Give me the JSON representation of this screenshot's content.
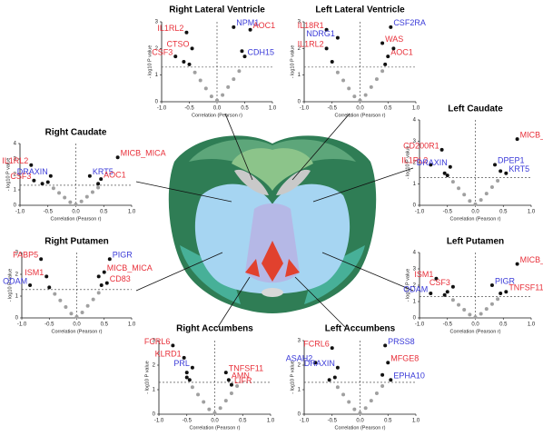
{
  "chart_data": [
    {
      "type": "scatter",
      "title": "Right Lateral Ventricle",
      "x_label": "Correlation (Pearson r)",
      "y_label": "- log10 P value",
      "xlim": [
        -1,
        1
      ],
      "ylim": [
        0,
        3
      ],
      "xticks": [
        {
          "value": -1,
          "label": "-1.0"
        },
        {
          "value": -0.5,
          "label": "-0.5"
        },
        {
          "value": 0,
          "label": "0.0"
        },
        {
          "value": 0.5,
          "label": "0.5"
        },
        {
          "value": 1,
          "label": "1.0"
        }
      ],
      "yticks": [
        0,
        1,
        2,
        3
      ],
      "threshold_x": 0,
      "threshold_y": 1.3,
      "series": [
        {
          "color": "#a0a0a0",
          "x": [
            -0.4,
            -0.3,
            -0.2,
            -0.1,
            0,
            0.1,
            0.2,
            0.3,
            0.4
          ],
          "values": [
            1.1,
            0.8,
            0.5,
            0.2,
            0.05,
            0.25,
            0.55,
            0.85,
            1.15
          ]
        },
        {
          "color": "#111111",
          "x": [
            -0.55,
            -0.75,
            -0.45,
            0.3,
            0.6,
            0.5,
            -0.6,
            -0.5,
            0.45
          ],
          "values": [
            2.6,
            1.7,
            2.0,
            2.8,
            2.7,
            1.7,
            1.5,
            1.4,
            1.9
          ],
          "labels": [
            "IL1RL2",
            "CSF3",
            "CTSO",
            "NPM1",
            "AOC1",
            "CDH15",
            null,
            null,
            null
          ],
          "label_colors": [
            "#e8303a",
            "#e8303a",
            "#e8303a",
            "#3a3ad8",
            "#e8303a",
            "#3a3ad8",
            null,
            null,
            null
          ]
        }
      ]
    },
    {
      "type": "scatter",
      "title": "Left Lateral Ventricle",
      "x_label": "Correlation (Pearson r)",
      "y_label": "- log10 P value",
      "xlim": [
        -1,
        1
      ],
      "ylim": [
        0,
        3
      ],
      "xticks": [
        {
          "value": -1,
          "label": "-1.0"
        },
        {
          "value": -0.5,
          "label": "-0.5"
        },
        {
          "value": 0,
          "label": "0.0"
        },
        {
          "value": 0.5,
          "label": "0.5"
        },
        {
          "value": 1,
          "label": "1.0"
        }
      ],
      "yticks": [
        0,
        1,
        2,
        3
      ],
      "threshold_x": 0,
      "threshold_y": 1.3,
      "series": [
        {
          "color": "#a0a0a0",
          "x": [
            -0.4,
            -0.3,
            -0.2,
            -0.1,
            0,
            0.1,
            0.2,
            0.3,
            0.4
          ],
          "values": [
            1.1,
            0.8,
            0.5,
            0.2,
            0.05,
            0.25,
            0.55,
            0.85,
            1.15
          ]
        },
        {
          "color": "#111111",
          "x": [
            -0.6,
            -0.4,
            -0.6,
            0.55,
            0.4,
            0.5,
            -0.5,
            0.45,
            0.6
          ],
          "values": [
            2.7,
            2.4,
            2.0,
            2.8,
            2.2,
            1.7,
            1.5,
            1.4,
            2.0
          ],
          "labels": [
            "IL18R1",
            "NDRG1",
            "IL1RL2",
            "CSF2RA",
            "WAS",
            "AOC1",
            null,
            null,
            null
          ],
          "label_colors": [
            "#e8303a",
            "#3a3ad8",
            "#e8303a",
            "#3a3ad8",
            "#e8303a",
            "#e8303a",
            null,
            null,
            null
          ]
        }
      ]
    },
    {
      "type": "scatter",
      "title": "Right Caudate",
      "x_label": "Correlation (Pearson r)",
      "y_label": "- log10 P value",
      "xlim": [
        -1,
        1
      ],
      "ylim": [
        0,
        4
      ],
      "xticks": [
        {
          "value": -1,
          "label": "-1.0"
        },
        {
          "value": -0.5,
          "label": "-0.5"
        },
        {
          "value": 0,
          "label": "0.0"
        },
        {
          "value": 0.5,
          "label": "0.5"
        },
        {
          "value": 1,
          "label": "1.0"
        }
      ],
      "yticks": [
        0,
        1,
        2,
        3,
        4
      ],
      "threshold_x": 0,
      "threshold_y": 1.3,
      "series": [
        {
          "color": "#a0a0a0",
          "x": [
            -0.4,
            -0.3,
            -0.2,
            -0.1,
            0,
            0.1,
            0.2,
            0.3,
            0.4
          ],
          "values": [
            1.1,
            0.8,
            0.5,
            0.2,
            0.05,
            0.25,
            0.55,
            0.85,
            1.15
          ]
        },
        {
          "color": "#111111",
          "x": [
            -0.8,
            -0.75,
            -0.45,
            0.25,
            0.45,
            0.75,
            -0.6,
            -0.5,
            0.4
          ],
          "values": [
            2.6,
            1.6,
            1.9,
            1.9,
            1.7,
            3.1,
            1.4,
            1.5,
            1.4
          ],
          "labels": [
            "IL1RL2",
            "CSF3",
            "DRAXIN",
            "KRT5",
            "AOC1",
            "MICB_MICA",
            null,
            null,
            null
          ],
          "label_colors": [
            "#e8303a",
            "#e8303a",
            "#3a3ad8",
            "#3a3ad8",
            "#e8303a",
            "#e8303a",
            null,
            null,
            null
          ]
        }
      ]
    },
    {
      "type": "scatter",
      "title": "Left Caudate",
      "x_label": "Correlation (Pearson r)",
      "y_label": "- log10 P value",
      "xlim": [
        -1,
        1
      ],
      "ylim": [
        0,
        4
      ],
      "xticks": [
        {
          "value": -1,
          "label": "-1.0"
        },
        {
          "value": -0.5,
          "label": "-0.5"
        },
        {
          "value": 0,
          "label": "0.0"
        },
        {
          "value": 0.5,
          "label": "0.5"
        },
        {
          "value": 1,
          "label": "1.0"
        }
      ],
      "yticks": [
        0,
        1,
        2,
        3,
        4
      ],
      "threshold_x": 0,
      "threshold_y": 1.3,
      "series": [
        {
          "color": "#a0a0a0",
          "x": [
            -0.4,
            -0.3,
            -0.2,
            -0.1,
            0,
            0.1,
            0.2,
            0.3,
            0.4
          ],
          "values": [
            1.1,
            0.8,
            0.5,
            0.2,
            0.05,
            0.25,
            0.55,
            0.85,
            1.15
          ]
        },
        {
          "color": "#111111",
          "x": [
            -0.6,
            -0.8,
            -0.45,
            0.35,
            0.55,
            0.75,
            -0.55,
            -0.5,
            0.45
          ],
          "values": [
            2.6,
            1.9,
            1.8,
            1.9,
            1.5,
            3.1,
            1.5,
            1.4,
            1.6
          ],
          "labels": [
            "CD200R1",
            "IL1RL2",
            "DRAXIN",
            "DPEP1",
            "KRT5",
            "MICB_MICA",
            null,
            null,
            null
          ],
          "label_colors": [
            "#e8303a",
            "#e8303a",
            "#3a3ad8",
            "#3a3ad8",
            "#3a3ad8",
            "#e8303a",
            null,
            null,
            null
          ]
        }
      ]
    },
    {
      "type": "scatter",
      "title": "Right Putamen",
      "x_label": "Correlation (Pearson r)",
      "y_label": "- log10 P value",
      "xlim": [
        -1,
        1
      ],
      "ylim": [
        0,
        3
      ],
      "xticks": [
        {
          "value": -1,
          "label": "-1.0"
        },
        {
          "value": -0.5,
          "label": "-0.5"
        },
        {
          "value": 0,
          "label": "0.0"
        },
        {
          "value": 0.5,
          "label": "0.5"
        },
        {
          "value": 1,
          "label": "1.0"
        }
      ],
      "yticks": [
        0,
        1,
        2,
        3
      ],
      "threshold_x": 0,
      "threshold_y": 1.3,
      "series": [
        {
          "color": "#a0a0a0",
          "x": [
            -0.4,
            -0.3,
            -0.2,
            -0.1,
            0,
            0.1,
            0.2,
            0.3,
            0.4
          ],
          "values": [
            1.1,
            0.8,
            0.5,
            0.2,
            0.05,
            0.25,
            0.55,
            0.85,
            1.15
          ]
        },
        {
          "color": "#111111",
          "x": [
            -0.65,
            -0.55,
            -0.85,
            0.6,
            0.5,
            0.55,
            -0.5,
            0.45,
            0.4
          ],
          "values": [
            2.7,
            1.9,
            1.5,
            2.7,
            2.1,
            1.6,
            1.4,
            1.5,
            1.9
          ],
          "labels": [
            "FABP5",
            "ISM1",
            "ODAM",
            "PIGR",
            "MICB_MICA",
            "CD83",
            null,
            null,
            null
          ],
          "label_colors": [
            "#e8303a",
            "#e8303a",
            "#3a3ad8",
            "#3a3ad8",
            "#e8303a",
            "#e8303a",
            null,
            null,
            null
          ]
        }
      ]
    },
    {
      "type": "scatter",
      "title": "Left Putamen",
      "x_label": "Correlation (Pearson r)",
      "y_label": "- log10 P value",
      "xlim": [
        -1,
        1
      ],
      "ylim": [
        0,
        4
      ],
      "xticks": [
        {
          "value": -1,
          "label": "-1.0"
        },
        {
          "value": -0.5,
          "label": "-0.5"
        },
        {
          "value": 0,
          "label": "0.0"
        },
        {
          "value": 0.5,
          "label": "0.5"
        },
        {
          "value": 1,
          "label": "1.0"
        }
      ],
      "yticks": [
        0,
        1,
        2,
        3,
        4
      ],
      "threshold_x": 0,
      "threshold_y": 1.3,
      "series": [
        {
          "color": "#a0a0a0",
          "x": [
            -0.4,
            -0.3,
            -0.2,
            -0.1,
            0,
            0.1,
            0.2,
            0.3,
            0.4
          ],
          "values": [
            1.1,
            0.8,
            0.5,
            0.2,
            0.05,
            0.25,
            0.55,
            0.85,
            1.15
          ]
        },
        {
          "color": "#111111",
          "x": [
            -0.7,
            -0.4,
            -0.8,
            0.3,
            0.55,
            0.75,
            -0.55,
            -0.5,
            0.45
          ],
          "values": [
            2.4,
            1.9,
            1.5,
            2.0,
            1.6,
            3.3,
            1.4,
            1.6,
            1.5
          ],
          "labels": [
            "ISM1",
            "CSF3",
            "ODAM",
            "PIGR",
            "TNFSF11",
            "MICB_MICA",
            null,
            null,
            null
          ],
          "label_colors": [
            "#e8303a",
            "#e8303a",
            "#3a3ad8",
            "#3a3ad8",
            "#e8303a",
            "#e8303a",
            null,
            null,
            null
          ]
        }
      ]
    },
    {
      "type": "scatter",
      "title": "Right Accumbens",
      "x_label": "Correlation (Pearson r)",
      "y_label": "- log10 P value",
      "xlim": [
        -1,
        1
      ],
      "ylim": [
        0,
        3
      ],
      "xticks": [
        {
          "value": -1,
          "label": "-1.0"
        },
        {
          "value": -0.5,
          "label": "-0.5"
        },
        {
          "value": 0,
          "label": "0.0"
        },
        {
          "value": 0.5,
          "label": "0.5"
        },
        {
          "value": 1,
          "label": "1.0"
        }
      ],
      "yticks": [
        0,
        1,
        2,
        3
      ],
      "threshold_x": 0,
      "threshold_y": 1.3,
      "series": [
        {
          "color": "#a0a0a0",
          "x": [
            -0.4,
            -0.3,
            -0.2,
            -0.1,
            0,
            0.1,
            0.2,
            0.3,
            0.4
          ],
          "values": [
            1.1,
            0.8,
            0.5,
            0.2,
            0.05,
            0.25,
            0.55,
            0.85,
            1.15
          ]
        },
        {
          "color": "#111111",
          "x": [
            -0.75,
            -0.55,
            -0.4,
            0.2,
            0.25,
            0.3,
            -0.5,
            -0.45,
            -0.5
          ],
          "values": [
            2.8,
            2.3,
            1.9,
            1.7,
            1.4,
            1.2,
            1.5,
            1.4,
            1.7
          ],
          "labels": [
            "FCRL6",
            "KLRD1",
            "PRL",
            "TNFSF11",
            "AMN",
            "LIFR",
            null,
            null,
            null
          ],
          "label_colors": [
            "#e8303a",
            "#e8303a",
            "#3a3ad8",
            "#e8303a",
            "#e8303a",
            "#e8303a",
            null,
            null,
            null
          ]
        }
      ]
    },
    {
      "type": "scatter",
      "title": "Left Accumbens",
      "x_label": "Correlation (Pearson r)",
      "y_label": "- log10 P value",
      "xlim": [
        -1,
        1
      ],
      "ylim": [
        0,
        3
      ],
      "xticks": [
        {
          "value": -1,
          "label": "-1.0"
        },
        {
          "value": -0.5,
          "label": "-0.5"
        },
        {
          "value": 0,
          "label": "0.0"
        },
        {
          "value": 0.5,
          "label": "0.5"
        },
        {
          "value": 1,
          "label": "1.0"
        }
      ],
      "yticks": [
        0,
        1,
        2,
        3
      ],
      "threshold_x": 0,
      "threshold_y": 1.3,
      "series": [
        {
          "color": "#a0a0a0",
          "x": [
            -0.4,
            -0.3,
            -0.2,
            -0.1,
            0,
            0.1,
            0.2,
            0.3,
            0.4
          ],
          "values": [
            1.1,
            0.8,
            0.5,
            0.2,
            0.05,
            0.25,
            0.55,
            0.85,
            1.15
          ]
        },
        {
          "color": "#111111",
          "x": [
            -0.5,
            -0.8,
            -0.4,
            0.45,
            0.5,
            0.55,
            -0.45,
            -0.55,
            0.4
          ],
          "values": [
            2.7,
            2.1,
            1.9,
            2.8,
            2.1,
            1.4,
            1.5,
            1.4,
            1.6
          ],
          "labels": [
            "FCRL6",
            "ASAH2",
            "DRAXIN",
            "PRSS8",
            "MFGE8",
            "EPHA10",
            null,
            null,
            null
          ],
          "label_colors": [
            "#e8303a",
            "#3a3ad8",
            "#3a3ad8",
            "#3a3ad8",
            "#e8303a",
            "#3a3ad8",
            null,
            null,
            null
          ]
        }
      ]
    }
  ]
}
